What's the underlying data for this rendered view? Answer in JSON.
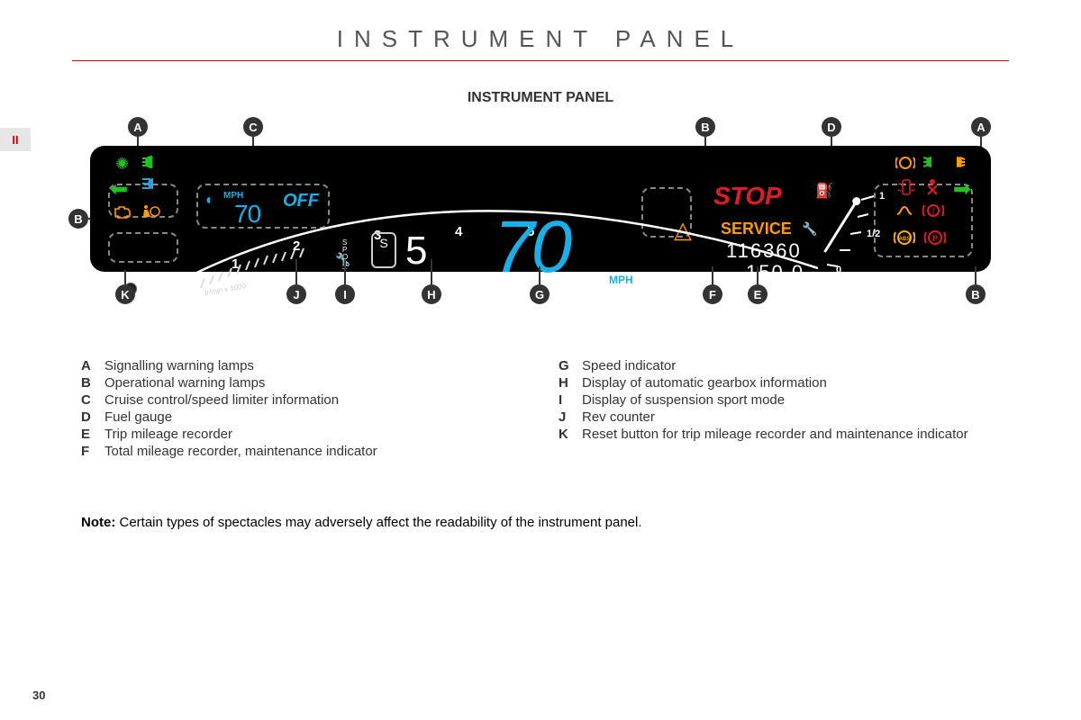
{
  "page": {
    "title": "INSTRUMENT PANEL",
    "subtitle": "INSTRUMENT PANEL",
    "chapter_tab": "II",
    "page_number": "30",
    "note_label": "Note:",
    "note_text": " Certain types of spectacles may adversely affect the readability of the instrument panel."
  },
  "panel": {
    "cruise": {
      "mph": "MPH",
      "value": "70",
      "off": "OFF"
    },
    "tach": {
      "labels": [
        "0",
        "1",
        "2",
        "3",
        "4",
        "5"
      ],
      "unit": "tr/min x 1000"
    },
    "sport_letters": "S\nP\nO\nR\nT",
    "gear_mode": "S",
    "gear_num": "5",
    "speed": {
      "value": "70",
      "unit": "MPH"
    },
    "stop": "STOP",
    "service": "SERVICE",
    "odometer": "116360",
    "trip": "150.0",
    "fuel": {
      "full": "1",
      "half": "1/2",
      "empty": "0"
    }
  },
  "callouts": {
    "A": "A",
    "B": "B",
    "C": "C",
    "D": "D",
    "E": "E",
    "F": "F",
    "G": "G",
    "H": "H",
    "I": "I",
    "J": "J",
    "K": "K"
  },
  "legend_left": [
    {
      "k": "A",
      "t": "Signalling warning lamps"
    },
    {
      "k": "B",
      "t": "Operational warning lamps"
    },
    {
      "k": "C",
      "t": "Cruise control/speed limiter information"
    },
    {
      "k": "D",
      "t": "Fuel gauge"
    },
    {
      "k": "E",
      "t": "Trip mileage recorder"
    },
    {
      "k": "F",
      "t": "Total mileage recorder, maintenance indicator"
    }
  ],
  "legend_right": [
    {
      "k": "G",
      "t": "Speed indicator"
    },
    {
      "k": "H",
      "t": "Display of automatic gearbox information"
    },
    {
      "k": "I",
      "t": "Display of suspension sport mode"
    },
    {
      "k": "J",
      "t": "Rev counter"
    },
    {
      "k": "K",
      "t": "Reset button for trip mileage recorder and maintenance indicator"
    }
  ],
  "colors": {
    "accent_red": "#c00",
    "cyan": "#17b0e8",
    "orange": "#ff9a00",
    "green": "#1ec41e",
    "bg_panel": "#000000"
  }
}
